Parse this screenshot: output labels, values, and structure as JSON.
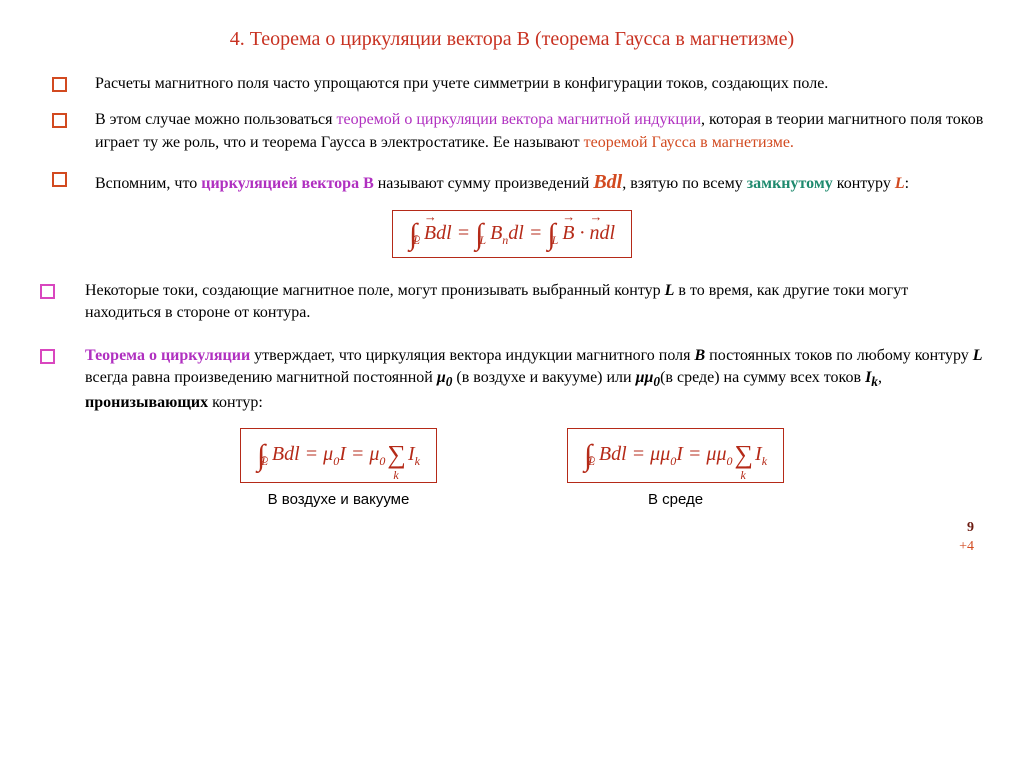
{
  "colors": {
    "title": "#c83222",
    "title_accent": "#c83222",
    "bullet_red": "#d24a20",
    "bullet_pink": "#d946bf",
    "text_body": "#000000",
    "term_purple": "#b030c0",
    "term_teal": "#1f8a6e",
    "term_red": "#d24a20",
    "formula_border": "#b52a18",
    "formula_text": "#b52a18",
    "pagenum": "#6b1a10",
    "plus4": "#d24a20"
  },
  "title": {
    "prefix": "4.",
    "main": "Теорема о циркуляции вектора",
    "accent": "В",
    "suffix": "(теорема Гаусса в магнетизме)"
  },
  "bullets": [
    {
      "style": "red",
      "html": "Расчеты магнитного поля часто упрощаются при учете симметрии в конфигурации токов, создающих поле."
    },
    {
      "style": "red",
      "html": "В этом случае можно пользоваться <span class='term-purple'>теоремой о циркуляции вектора магнитной индукции</span>, которая в теории магнитного поля токов играет ту же роль, что и теорема Гаусса в электростатике. Ее называют <span class='term-red'>теоремой Гаусса в магнетизме.</span>"
    },
    {
      "style": "red",
      "html": "Вспомним, что <span class='term-purple bold'>циркуляцией вектора В</span> называют сумму произведений <i class='bold term-red big'>Bdl</i>, взятую по всему <span class='term-teal bold'>замкнутому</span> контуру <i class='bold term-red'>L</i>:"
    },
    {
      "style": "pink",
      "html": "Некоторые токи, создающие магнитное поле, могут пронизывать выбранный контур <b><i>L</i></b> в то время, как другие токи могут находиться в стороне от контура."
    },
    {
      "style": "pink",
      "html": "<span class='term-purple bold'>Теорема о циркуляции</span> утверждает, что циркуляция вектора индукции магнитного поля <b><i>В</i></b> постоянных токов по любому контуру <b><i>L</i></b> всегда равна произведению магнитной постоянной <b><i>μ<sub>0</sub></i></b> (в воздухе и вакууме) или <b><i>μμ<sub>0</sub></i></b>(в среде) на сумму всех токов <b><i>I<sub>k</sub></i></b>, <b>пронизывающих</b> контур:"
    }
  ],
  "formula_top": "∮_L B⃗dl = ∫_L Bₙdl = ∫_L B⃗·n⃗dl",
  "formulas_bottom": {
    "left": {
      "expr": "∮_L Bdl = μ₀I = μ₀ Σ_k I_k",
      "caption": "В воздухе и вакууме"
    },
    "right": {
      "expr": "∮_L Bdl = μμ₀I = μμ₀ Σ_k I_k",
      "caption": "В среде"
    }
  },
  "pagenum": "9",
  "likes": "+4"
}
